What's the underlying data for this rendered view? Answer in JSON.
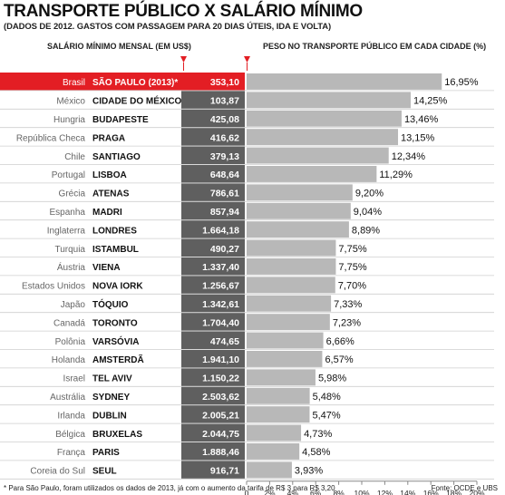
{
  "header": {
    "title": "TRANSPORTE PÚBLICO X SALÁRIO MÍNIMO",
    "subtitle": "(DADOS DE 2012. GASTOS COM PASSAGEM PARA 20 DIAS ÚTEIS, IDA E VOLTA)",
    "salary_header": "SALÁRIO MÍNIMO MENSAL (EM US$)",
    "weight_header": "PESO NO TRANSPORTE PÚBLICO EM CADA CIDADE (%)"
  },
  "footer": {
    "footnote": "* Para São Paulo, foram utilizados os dados de 2013, já com o aumento da tarifa de R$ 3 para R$ 3,20",
    "source": "Fonte: OCDE e UBS"
  },
  "colors": {
    "highlight_red": "#e31e24",
    "salary_cell": "#5f5f5f",
    "bar_gray": "#b8b8b8",
    "row_line": "#cfcfcf"
  },
  "chart_data": {
    "type": "bar",
    "orientation": "horizontal",
    "rows": [
      {
        "country": "Brasil",
        "city": "SÃO PAULO (2013)*",
        "salary": "353,10",
        "percent": 16.95,
        "percent_label": "16,95%",
        "highlight": true
      },
      {
        "country": "México",
        "city": "CIDADE DO MÉXICO",
        "salary": "103,87",
        "percent": 14.25,
        "percent_label": "14,25%"
      },
      {
        "country": "Hungria",
        "city": "BUDAPESTE",
        "salary": "425,08",
        "percent": 13.46,
        "percent_label": "13,46%"
      },
      {
        "country": "República Checa",
        "city": "PRAGA",
        "salary": "416,62",
        "percent": 13.15,
        "percent_label": "13,15%"
      },
      {
        "country": "Chile",
        "city": "SANTIAGO",
        "salary": "379,13",
        "percent": 12.34,
        "percent_label": "12,34%"
      },
      {
        "country": "Portugal",
        "city": "LISBOA",
        "salary": "648,64",
        "percent": 11.29,
        "percent_label": "11,29%"
      },
      {
        "country": "Grécia",
        "city": "ATENAS",
        "salary": "786,61",
        "percent": 9.2,
        "percent_label": "9,20%"
      },
      {
        "country": "Espanha",
        "city": "MADRI",
        "salary": "857,94",
        "percent": 9.04,
        "percent_label": "9,04%"
      },
      {
        "country": "Inglaterra",
        "city": "LONDRES",
        "salary": "1.664,18",
        "percent": 8.89,
        "percent_label": "8,89%"
      },
      {
        "country": "Turquia",
        "city": "ISTAMBUL",
        "salary": "490,27",
        "percent": 7.75,
        "percent_label": "7,75%"
      },
      {
        "country": "Áustria",
        "city": "VIENA",
        "salary": "1.337,40",
        "percent": 7.75,
        "percent_label": "7,75%"
      },
      {
        "country": "Estados Unidos",
        "city": "NOVA IORK",
        "salary": "1.256,67",
        "percent": 7.7,
        "percent_label": "7,70%"
      },
      {
        "country": "Japão",
        "city": "TÓQUIO",
        "salary": "1.342,61",
        "percent": 7.33,
        "percent_label": "7,33%"
      },
      {
        "country": "Canadá",
        "city": "TORONTO",
        "salary": "1.704,40",
        "percent": 7.23,
        "percent_label": "7,23%"
      },
      {
        "country": "Polônia",
        "city": "VARSÓVIA",
        "salary": "474,65",
        "percent": 6.66,
        "percent_label": "6,66%"
      },
      {
        "country": "Holanda",
        "city": "AMSTERDÃ",
        "salary": "1.941,10",
        "percent": 6.57,
        "percent_label": "6,57%"
      },
      {
        "country": "Israel",
        "city": "TEL AVIV",
        "salary": "1.150,22",
        "percent": 5.98,
        "percent_label": "5,98%"
      },
      {
        "country": "Austrália",
        "city": "SYDNEY",
        "salary": "2.503,62",
        "percent": 5.48,
        "percent_label": "5,48%"
      },
      {
        "country": "Irlanda",
        "city": "DUBLIN",
        "salary": "2.005,21",
        "percent": 5.47,
        "percent_label": "5,47%"
      },
      {
        "country": "Bélgica",
        "city": "BRUXELAS",
        "salary": "2.044,75",
        "percent": 4.73,
        "percent_label": "4,73%"
      },
      {
        "country": "França",
        "city": "PARIS",
        "salary": "1.888,46",
        "percent": 4.58,
        "percent_label": "4,58%"
      },
      {
        "country": "Coreia do Sul",
        "city": "SEUL",
        "salary": "916,71",
        "percent": 3.93,
        "percent_label": "3,93%"
      }
    ],
    "xlim": [
      0,
      20
    ],
    "x_ticks": [
      "0",
      "2%",
      "4%",
      "6%",
      "8%",
      "10%",
      "12%",
      "14%",
      "16%",
      "18%",
      "20%"
    ],
    "bars_grow_from": "right"
  }
}
